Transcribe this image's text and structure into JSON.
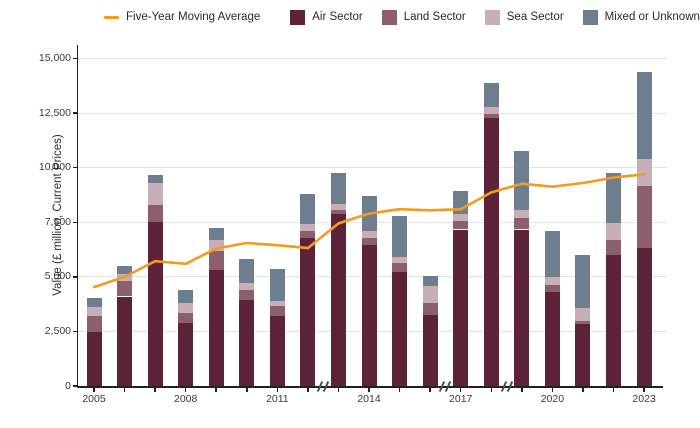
{
  "legend": {
    "line_label": "Five-Year Moving Average",
    "line_color": "#F29C1F",
    "series_labels": [
      "Air Sector",
      "Land Sector",
      "Sea Sector",
      "Mixed or Unknown"
    ]
  },
  "y_axis": {
    "title": "Value (£ million, Current Prices)",
    "tick_labels": [
      "0",
      "2,500",
      "5,000",
      "7,500",
      "10,000",
      "12,500",
      "15,000"
    ]
  },
  "x_axis": {
    "tick_labels": [
      "2005",
      "2008",
      "2011",
      "2014",
      "2017",
      "2020",
      "2023"
    ]
  },
  "chart_data": {
    "type": "bar",
    "stacked": true,
    "title": "",
    "xlabel": "",
    "ylabel": "Value (£ million, Current Prices)",
    "ylim": [
      0,
      15000
    ],
    "grid": "horizontal",
    "legend_position": "top",
    "x": [
      2005,
      2006,
      2007,
      2008,
      2009,
      2010,
      2011,
      2012,
      2013,
      2014,
      2015,
      2016,
      2017,
      2018,
      2019,
      2020,
      2021,
      2022,
      2023
    ],
    "x_labeled_years": [
      2005,
      2008,
      2011,
      2014,
      2017,
      2020,
      2023
    ],
    "axis_breaks_after_index": [
      7,
      11,
      13
    ],
    "series": [
      {
        "name": "Air Sector",
        "color": "#5C2238",
        "values": [
          2470,
          4100,
          7500,
          2880,
          5300,
          3920,
          3190,
          6760,
          7900,
          6480,
          5210,
          3260,
          7170,
          12300,
          7170,
          4300,
          2850,
          5980,
          6300
        ]
      },
      {
        "name": "Land Sector",
        "color": "#8B5F6D",
        "values": [
          720,
          700,
          810,
          460,
          870,
          460,
          490,
          340,
          185,
          280,
          430,
          540,
          380,
          150,
          540,
          340,
          150,
          700,
          2850
        ]
      },
      {
        "name": "Sea Sector",
        "color": "#C6AFB6",
        "values": [
          430,
          350,
          970,
          460,
          510,
          340,
          230,
          300,
          260,
          340,
          280,
          770,
          310,
          310,
          350,
          340,
          570,
          770,
          1250
        ]
      },
      {
        "name": "Mixed or Unknown",
        "color": "#6E7E8F",
        "values": [
          410,
          365,
          370,
          580,
          570,
          1080,
          1450,
          1380,
          1430,
          1600,
          1860,
          490,
          1070,
          1100,
          2710,
          2110,
          2450,
          2300,
          4000
        ]
      }
    ],
    "line_series": {
      "name": "Five-Year Moving Average",
      "color": "#F29C1F",
      "values": [
        4530,
        5000,
        5720,
        5600,
        6300,
        6550,
        6450,
        6320,
        7450,
        7900,
        8100,
        8050,
        8100,
        8870,
        9270,
        9130,
        9300,
        9550,
        9700
      ]
    }
  }
}
